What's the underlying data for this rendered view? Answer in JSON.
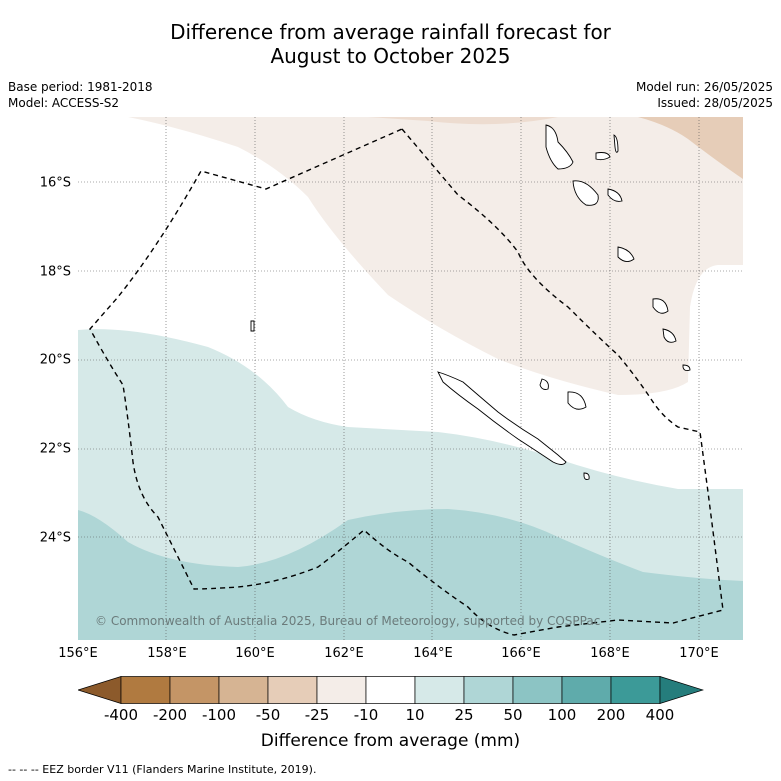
{
  "title_line1": "Difference from average rainfall forecast for",
  "title_line2": "August to October 2025",
  "meta": {
    "base_period": "Base period: 1981-2018",
    "model": "Model: ACCESS-S2",
    "model_run": "Model run: 26/05/2025",
    "issued": "Issued: 28/05/2025"
  },
  "lat_labels": [
    "16°S",
    "18°S",
    "20°S",
    "22°S",
    "24°S"
  ],
  "lon_labels": [
    "156°E",
    "158°E",
    "160°E",
    "162°E",
    "164°E",
    "166°E",
    "168°E",
    "170°E"
  ],
  "copyright": "© Commonwealth of Australia 2025, Bureau of Meteorology, supported by COSPPac",
  "colorbar": {
    "ticks": [
      "-400",
      "-200",
      "-100",
      "-50",
      "-25",
      "-10",
      "10",
      "25",
      "50",
      "100",
      "200",
      "400"
    ],
    "colors": [
      "#8c5a2b",
      "#b07a40",
      "#c49566",
      "#d6b493",
      "#e6cdb8",
      "#f4ede8",
      "#ffffff",
      "#d6e9e8",
      "#afd6d6",
      "#8cc4c4",
      "#5fabab",
      "#3c9a98",
      "#257d7c"
    ],
    "title": "Difference from average (mm)"
  },
  "footnote": "-- -- -- EEZ border V11 (Flanders Marine Institute, 2019).",
  "colors": {
    "dry_light": "#f4ede8",
    "dry_mid": "#e6cdb8",
    "wet_light": "#d6e9e8",
    "wet_mid": "#afd6d6"
  }
}
